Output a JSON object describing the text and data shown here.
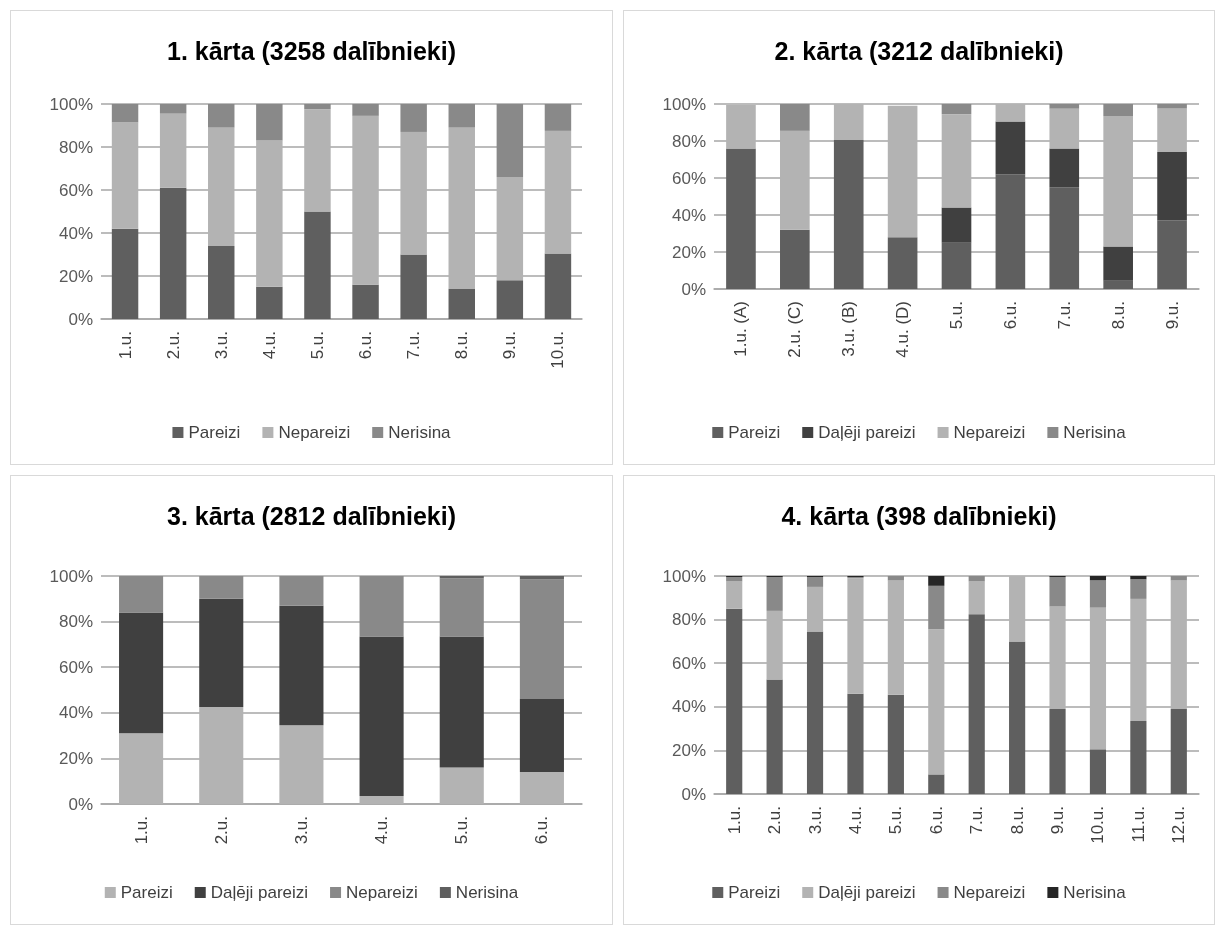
{
  "chart_data": [
    {
      "type": "bar",
      "title": "1. kārta (3258 dalībnieki)",
      "stacked": true,
      "grid": "y",
      "legend": "bottom",
      "ylim": [
        0,
        100
      ],
      "yticks": [
        {
          "value": 0,
          "label": "0%"
        },
        {
          "value": 20,
          "label": "20%"
        },
        {
          "value": 40,
          "label": "40%"
        },
        {
          "value": 60,
          "label": "60%"
        },
        {
          "value": 80,
          "label": "80%"
        },
        {
          "value": 100,
          "label": "100%"
        }
      ],
      "categories": [
        "1.u.",
        "2.u.",
        "3.u.",
        "4.u.",
        "5.u.",
        "6.u.",
        "7.u.",
        "8.u.",
        "9.u.",
        "10.u."
      ],
      "series": [
        {
          "name": "Pareizi",
          "color": "#5f5f5f",
          "values": [
            42,
            61,
            34,
            15,
            50,
            16,
            30,
            14,
            18,
            30.5
          ]
        },
        {
          "name": "Nepareizi",
          "color": "#b3b3b3",
          "values": [
            49.5,
            34.5,
            55,
            68,
            47.5,
            78.5,
            57,
            75,
            48,
            57
          ]
        },
        {
          "name": "Nerisina",
          "color": "#898989",
          "values": [
            8.5,
            4.5,
            11,
            17,
            2.5,
            5.5,
            13,
            11,
            34,
            12.5
          ]
        }
      ]
    },
    {
      "type": "bar",
      "title": "2. kārta (3212 dalībnieki)",
      "stacked": true,
      "grid": "y",
      "legend": "bottom",
      "ylim": [
        0,
        100
      ],
      "yticks": [
        {
          "value": 0,
          "label": "0%"
        },
        {
          "value": 20,
          "label": "20%"
        },
        {
          "value": 40,
          "label": "40%"
        },
        {
          "value": 60,
          "label": "60%"
        },
        {
          "value": 80,
          "label": "80%"
        },
        {
          "value": 100,
          "label": "100%"
        }
      ],
      "categories": [
        "1.u. (A)",
        "2.u. (C)",
        "3.u. (B)",
        "4.u. (D)",
        "5.u.",
        "6.u.",
        "7.u.",
        "8.u.",
        "9.u."
      ],
      "series": [
        {
          "name": "Pareizi",
          "color": "#5f5f5f",
          "values": [
            76,
            32,
            80.5,
            28,
            25,
            62,
            55,
            4.5,
            37
          ]
        },
        {
          "name": "Daļēji pareizi",
          "color": "#404040",
          "values": [
            0,
            0,
            0,
            0,
            19,
            28.5,
            21,
            18.5,
            37
          ]
        },
        {
          "name": "Nepareizi",
          "color": "#b3b3b3",
          "values": [
            23.5,
            53.5,
            19.5,
            71,
            50.5,
            9.5,
            21.5,
            70.5,
            23.5
          ]
        },
        {
          "name": "Nerisina",
          "color": "#898989",
          "values": [
            null,
            14.5,
            0,
            null,
            5.5,
            0,
            2.5,
            6.5,
            2.5
          ]
        }
      ]
    },
    {
      "type": "bar",
      "title": "3. kārta (2812 dalībnieki)",
      "stacked": true,
      "grid": "y",
      "legend": "bottom",
      "ylim": [
        0,
        100
      ],
      "yticks": [
        {
          "value": 0,
          "label": "0%"
        },
        {
          "value": 20,
          "label": "20%"
        },
        {
          "value": 40,
          "label": "40%"
        },
        {
          "value": 60,
          "label": "60%"
        },
        {
          "value": 80,
          "label": "80%"
        },
        {
          "value": 100,
          "label": "100%"
        }
      ],
      "categories": [
        "1.u.",
        "2.u.",
        "3.u.",
        "4.u.",
        "5.u.",
        "6.u."
      ],
      "series": [
        {
          "name": "Pareizi",
          "color": "#b3b3b3",
          "values": [
            31,
            42.5,
            34.5,
            3.5,
            16,
            14
          ]
        },
        {
          "name": "Daļēji pareizi",
          "color": "#404040",
          "values": [
            53,
            47.5,
            52.5,
            70,
            57.5,
            32
          ]
        },
        {
          "name": "Nepareizi",
          "color": "#898989",
          "values": [
            16,
            10,
            13,
            26.5,
            25.5,
            52.5
          ]
        },
        {
          "name": "Nerisina",
          "color": "#5f5f5f",
          "values": [
            0,
            0,
            0,
            0,
            1,
            1.5
          ]
        }
      ]
    },
    {
      "type": "bar",
      "title": "4. kārta (398 dalībnieki)",
      "stacked": true,
      "grid": "y",
      "legend": "bottom",
      "ylim": [
        0,
        100
      ],
      "yticks": [
        {
          "value": 0,
          "label": "0%"
        },
        {
          "value": 20,
          "label": "20%"
        },
        {
          "value": 40,
          "label": "40%"
        },
        {
          "value": 60,
          "label": "60%"
        },
        {
          "value": 80,
          "label": "80%"
        },
        {
          "value": 100,
          "label": "100%"
        }
      ],
      "categories": [
        "1.u.",
        "2.u.",
        "3.u.",
        "4.u.",
        "5.u.",
        "6.u.",
        "7.u.",
        "8.u.",
        "9.u.",
        "10.u.",
        "11.u.",
        "12.u."
      ],
      "series": [
        {
          "name": "Pareizi",
          "color": "#5f5f5f",
          "values": [
            85,
            52.5,
            74.5,
            46,
            45.5,
            9,
            82.5,
            70,
            39,
            20.5,
            33.5,
            39
          ]
        },
        {
          "name": "Daļēji pareizi",
          "color": "#b3b3b3",
          "values": [
            12.5,
            31.5,
            20.5,
            53,
            52.5,
            66.5,
            15,
            30,
            47,
            65,
            56,
            59
          ]
        },
        {
          "name": "Nepareizi",
          "color": "#898989",
          "values": [
            2,
            15.5,
            4.5,
            0.5,
            2,
            20,
            2.5,
            0,
            13.5,
            12.5,
            9,
            2
          ]
        },
        {
          "name": "Nerisina",
          "color": "#262626",
          "values": [
            0.5,
            0.5,
            0.5,
            0.5,
            0,
            4.5,
            0,
            0,
            0.5,
            2,
            1.5,
            0
          ]
        }
      ]
    }
  ]
}
